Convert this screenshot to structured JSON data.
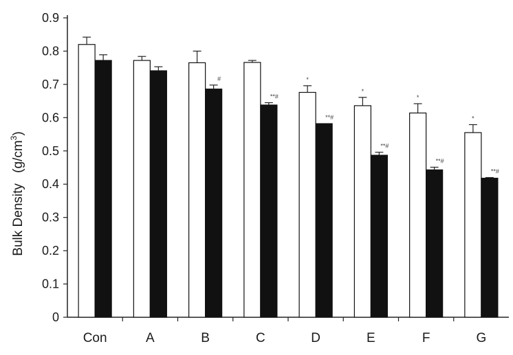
{
  "chart_data": {
    "type": "bar",
    "title": "",
    "xlabel": "",
    "ylabel": "Bulk Density",
    "ylabel_unit": "(g/cm",
    "ylabel_unit_sup": "3",
    "ylabel_unit_close": ")",
    "ylim": [
      0,
      0.9
    ],
    "yticks": [
      "0",
      "0.1",
      "0.2",
      "0.3",
      "0.4",
      "0.5",
      "0.6",
      "0.7",
      "0.8",
      "0.9"
    ],
    "categories": [
      "Con",
      "A",
      "B",
      "C",
      "D",
      "E",
      "F",
      "G"
    ],
    "grid": false,
    "legend": "none",
    "series": [
      {
        "color": "#ffffff",
        "values": [
          0.82,
          0.772,
          0.765,
          0.766,
          0.676,
          0.636,
          0.614,
          0.555
        ],
        "errors": [
          0.022,
          0.012,
          0.035,
          0.006,
          0.02,
          0.025,
          0.028,
          0.024
        ],
        "annotations": [
          "",
          "",
          "",
          "",
          "*",
          "*",
          "*",
          "*"
        ]
      },
      {
        "color": "#111111",
        "values": [
          0.772,
          0.741,
          0.686,
          0.638,
          0.582,
          0.487,
          0.443,
          0.418
        ],
        "errors": [
          0.017,
          0.012,
          0.012,
          0.007,
          0.0,
          0.009,
          0.008,
          0.002
        ],
        "annotations": [
          "",
          "",
          "#",
          "**#",
          "**#",
          "**#",
          "**#",
          "**#"
        ]
      }
    ]
  }
}
